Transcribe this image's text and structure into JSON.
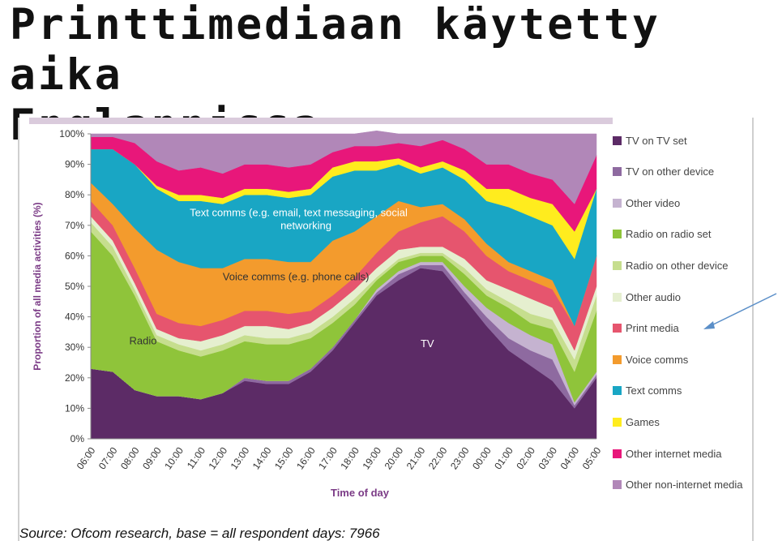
{
  "slide": {
    "title_line1": "Printtimediaan käytetty aika",
    "title_line2": "Englannissa"
  },
  "source_text": "Source: Ofcom research, base = all respondent days: 7966",
  "colors": {
    "tv_on_tv_set": "#5c2b66",
    "tv_other_device": "#8e6aa0",
    "other_video": "#c5b3d0",
    "radio_on_radio_set": "#8fc43a",
    "radio_other_device": "#c6de8e",
    "other_audio": "#e5efcf",
    "print_media": "#e6556e",
    "voice_comms": "#f39b2d",
    "text_comms": "#19a6c4",
    "games": "#ffec1e",
    "other_internet_media": "#e8177a",
    "other_non_internet_media": "#b187b8",
    "arrow": "#5b8fc8"
  },
  "chart_data": {
    "type": "area",
    "stacked": true,
    "title": "",
    "xlabel": "Time of day",
    "ylabel": "Proportion of all media activities (%)",
    "ylim": [
      0,
      100
    ],
    "yticks": [
      "0%",
      "10%",
      "20%",
      "30%",
      "40%",
      "50%",
      "60%",
      "70%",
      "80%",
      "90%",
      "100%"
    ],
    "x": [
      "06:00",
      "07:00",
      "08:00",
      "09:00",
      "10:00",
      "11:00",
      "12:00",
      "13:00",
      "14:00",
      "15:00",
      "16:00",
      "17:00",
      "18:00",
      "19:00",
      "20:00",
      "21:00",
      "22:00",
      "23:00",
      "00:00",
      "01:00",
      "02:00",
      "03:00",
      "04:00",
      "05:00"
    ],
    "legend_position": "right",
    "annotations": [
      {
        "text": "Text comms (e.g. email, text messaging, social",
        "text2": "networking",
        "x": "10:30",
        "y": 73
      },
      {
        "text": "Voice comms (e.g. phone calls)",
        "x": "12:00",
        "y": 52
      },
      {
        "text": "Radio",
        "x": "07:45",
        "y": 31
      },
      {
        "text": "TV",
        "x": "21:00",
        "y": 30
      }
    ],
    "series": [
      {
        "key": "tv_on_tv_set",
        "name": "TV on TV set",
        "values": [
          23,
          22,
          16,
          14,
          14,
          13,
          15,
          19,
          18,
          18,
          22,
          29,
          38,
          47,
          52,
          56,
          55,
          46,
          37,
          29,
          24,
          19,
          10,
          20
        ]
      },
      {
        "key": "tv_other_device",
        "name": "TV on other device",
        "values": [
          0,
          0,
          0,
          0,
          0,
          0,
          0,
          1,
          1,
          1,
          1,
          1,
          1,
          1,
          2,
          1,
          2,
          2,
          3,
          4,
          5,
          7,
          1,
          1
        ]
      },
      {
        "key": "other_video",
        "name": "Other video",
        "values": [
          0,
          0,
          0,
          0,
          0,
          0,
          0,
          0,
          0,
          0,
          0,
          0,
          0,
          1,
          1,
          1,
          1,
          2,
          3,
          5,
          5,
          5,
          1,
          1
        ]
      },
      {
        "key": "radio_on_radio_set",
        "name": "Radio on radio set",
        "values": [
          45,
          38,
          31,
          18,
          15,
          14,
          14,
          12,
          12,
          12,
          10,
          8,
          5,
          3,
          3,
          2,
          2,
          4,
          4,
          5,
          4,
          5,
          10,
          20
        ]
      },
      {
        "key": "radio_other_device",
        "name": "Radio on other device",
        "values": [
          3,
          3,
          2,
          2,
          2,
          2,
          2,
          2,
          2,
          2,
          2,
          2,
          2,
          1,
          1,
          1,
          1,
          2,
          2,
          2,
          3,
          3,
          4,
          5
        ]
      },
      {
        "key": "other_audio",
        "name": "Other audio",
        "values": [
          2,
          2,
          2,
          2,
          2,
          3,
          3,
          3,
          4,
          3,
          3,
          3,
          3,
          3,
          3,
          2,
          2,
          3,
          3,
          4,
          5,
          4,
          3,
          3
        ]
      },
      {
        "key": "print_media",
        "name": "Print media",
        "values": [
          5,
          5,
          5,
          5,
          5,
          5,
          5,
          5,
          5,
          5,
          4,
          4,
          4,
          5,
          6,
          8,
          10,
          9,
          8,
          6,
          6,
          6,
          8,
          10
        ]
      },
      {
        "key": "voice_comms",
        "name": "Voice comms",
        "values": [
          6,
          7,
          13,
          21,
          20,
          19,
          17,
          17,
          17,
          17,
          16,
          18,
          15,
          12,
          10,
          5,
          4,
          4,
          4,
          3,
          3,
          3,
          0,
          0
        ]
      },
      {
        "key": "text_comms",
        "name": "Text comms",
        "values": [
          11,
          18,
          21,
          20,
          20,
          22,
          21,
          21,
          21,
          21,
          22,
          21,
          20,
          15,
          12,
          11,
          12,
          13,
          14,
          18,
          18,
          18,
          22,
          22
        ]
      },
      {
        "key": "games",
        "name": "Games",
        "values": [
          0,
          0,
          0,
          1,
          2,
          2,
          2,
          2,
          2,
          2,
          2,
          3,
          3,
          3,
          2,
          2,
          2,
          3,
          4,
          6,
          6,
          7,
          9,
          0
        ]
      },
      {
        "key": "other_internet_media",
        "name": "Other internet media",
        "values": [
          4,
          4,
          7,
          8,
          8,
          9,
          8,
          8,
          8,
          8,
          8,
          5,
          5,
          5,
          5,
          7,
          7,
          7,
          8,
          8,
          8,
          8,
          9,
          11
        ]
      },
      {
        "key": "other_non_internet_media",
        "name": "Other non-internet media",
        "values": [
          1,
          1,
          3,
          9,
          12,
          11,
          13,
          10,
          10,
          11,
          10,
          6,
          4,
          5,
          3,
          4,
          2,
          5,
          10,
          10,
          13,
          15,
          23,
          7
        ]
      }
    ]
  }
}
